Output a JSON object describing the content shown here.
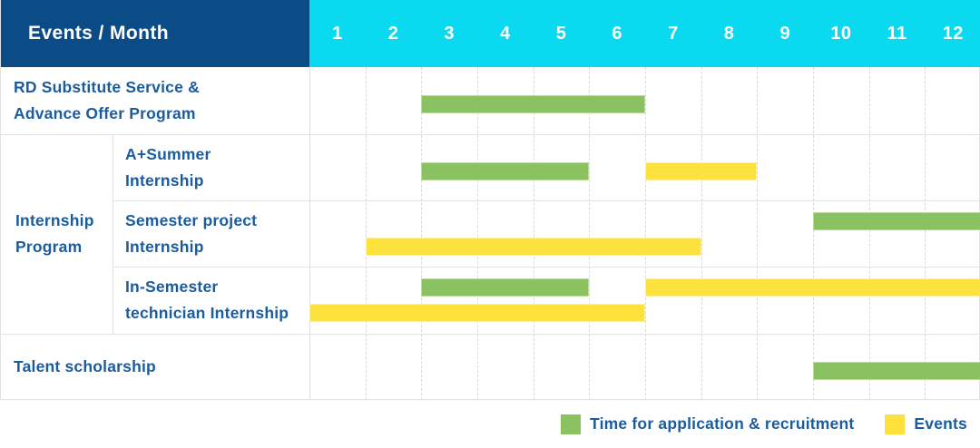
{
  "header": {
    "title": "Events / Month",
    "months": [
      "1",
      "2",
      "3",
      "4",
      "5",
      "6",
      "7",
      "8",
      "9",
      "10",
      "11",
      "12"
    ]
  },
  "colors": {
    "header_bg": "#0b4c86",
    "months_bg": "#0bd9ef",
    "application_green": "#8ac262",
    "events_yellow": "#fde23d",
    "label_text": "#1b5c9e",
    "grid_line": "#e0e0e0"
  },
  "chart_data": {
    "type": "gantt",
    "title": "Events / Month",
    "x_unit": "month",
    "x_range": [
      1,
      12
    ],
    "grid": true,
    "legend_position": "bottom-right",
    "legend": [
      {
        "key": "application",
        "label": "Time for application & recruitment",
        "color": "#8ac262"
      },
      {
        "key": "events",
        "label": "Events",
        "color": "#fde23d"
      }
    ],
    "group_label_lines": [
      "Internship",
      "Program"
    ],
    "rows": [
      {
        "event": "RD Substitute Service & Advance Offer Program",
        "label_lines": [
          "RD Substitute Service &",
          "Advance Offer Program"
        ],
        "group": null,
        "tracks": 1,
        "bars": [
          {
            "kind": "application",
            "start_month": 3,
            "end_month": 6,
            "track": 0
          }
        ]
      },
      {
        "event": "A+Summer Internship",
        "label_lines": [
          "A+Summer",
          "Internship"
        ],
        "group": "Internship Program",
        "tracks": 1,
        "bars": [
          {
            "kind": "application",
            "start_month": 3,
            "end_month": 5,
            "track": 0
          },
          {
            "kind": "events",
            "start_month": 7,
            "end_month": 8,
            "track": 0
          }
        ]
      },
      {
        "event": "Semester project Internship",
        "label_lines": [
          "Semester project",
          "Internship"
        ],
        "group": "Internship Program",
        "tracks": 2,
        "bars": [
          {
            "kind": "application",
            "start_month": 10,
            "end_month": 12,
            "track": 0
          },
          {
            "kind": "events",
            "start_month": 2,
            "end_month": 7,
            "track": 1
          }
        ]
      },
      {
        "event": "In-Semester technician Internship",
        "label_lines": [
          "In-Semester",
          "technician Internship"
        ],
        "group": "Internship Program",
        "tracks": 2,
        "bars": [
          {
            "kind": "application",
            "start_month": 3,
            "end_month": 5,
            "track": 0
          },
          {
            "kind": "events",
            "start_month": 7,
            "end_month": 12,
            "track": 0
          },
          {
            "kind": "events",
            "start_month": 1,
            "end_month": 6,
            "track": 1
          }
        ]
      },
      {
        "event": "Talent scholarship",
        "label_lines": [
          "Talent scholarship"
        ],
        "group": null,
        "tracks": 1,
        "bars": [
          {
            "kind": "application",
            "start_month": 10,
            "end_month": 12,
            "track": 0
          }
        ]
      }
    ]
  },
  "legend": {
    "application_label": "Time for application & recruitment",
    "events_label": "Events"
  }
}
